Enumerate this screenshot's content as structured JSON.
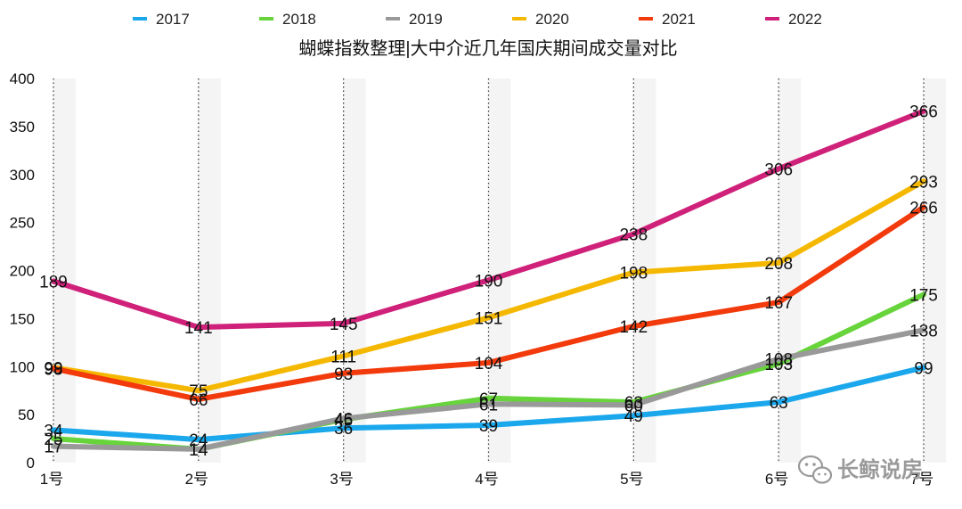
{
  "chart_data": {
    "type": "line",
    "title": "蝴蝶指数整理|大中介近几年国庆期间成交量对比",
    "categories": [
      "1号",
      "2号",
      "3号",
      "4号",
      "5号",
      "6号",
      "7号"
    ],
    "ylim": [
      0,
      400
    ],
    "yticks": [
      "0",
      "50",
      "100",
      "150",
      "200",
      "250",
      "300",
      "350",
      "400"
    ],
    "legend_position": "top",
    "series": [
      {
        "name": "2017",
        "color": "#1aa7ec",
        "values": [
          34,
          24,
          36,
          39,
          49,
          63,
          99
        ]
      },
      {
        "name": "2018",
        "color": "#66d43a",
        "values": [
          25,
          14,
          45,
          67,
          63,
          103,
          175
        ]
      },
      {
        "name": "2019",
        "color": "#999999",
        "values": [
          17,
          14,
          46,
          61,
          60,
          108,
          138
        ]
      },
      {
        "name": "2020",
        "color": "#f5b800",
        "values": [
          99,
          75,
          111,
          151,
          198,
          208,
          293
        ]
      },
      {
        "name": "2021",
        "color": "#f23a0c",
        "values": [
          98,
          66,
          93,
          104,
          142,
          167,
          266
        ]
      },
      {
        "name": "2022",
        "color": "#d0217a",
        "values": [
          189,
          141,
          145,
          190,
          238,
          306,
          366
        ]
      }
    ]
  },
  "watermark": {
    "text": "长鲸说房",
    "icon": "wechat-icon"
  }
}
